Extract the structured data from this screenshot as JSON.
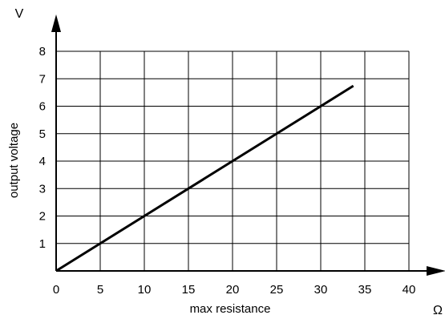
{
  "chart_data": {
    "type": "line",
    "title": "",
    "xlabel": "max resistance",
    "ylabel": "output voltage",
    "x_unit": "Ω",
    "y_unit": "V",
    "xlim": [
      0,
      40
    ],
    "ylim": [
      0,
      8
    ],
    "x_ticks": [
      0,
      5,
      10,
      15,
      20,
      25,
      30,
      35,
      40
    ],
    "y_ticks": [
      1,
      2,
      3,
      4,
      5,
      6,
      7,
      8
    ],
    "grid": true,
    "series": [
      {
        "x": [
          0,
          33.7
        ],
        "y": [
          0,
          6.74
        ]
      }
    ],
    "colors": {
      "line": "#000000",
      "grid": "#000000",
      "background": "#ffffff"
    }
  }
}
